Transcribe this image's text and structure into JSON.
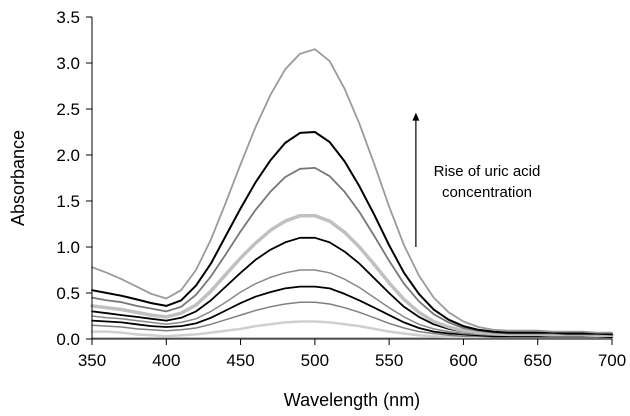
{
  "chart_data": {
    "type": "line",
    "title": "",
    "xlabel": "Wavelength (nm)",
    "ylabel": "Absorbance",
    "xlim": [
      350,
      700
    ],
    "ylim": [
      0,
      3.5
    ],
    "xticks": [
      350,
      400,
      450,
      500,
      550,
      600,
      650,
      700
    ],
    "yticks": [
      0.0,
      0.5,
      1.0,
      1.5,
      2.0,
      2.5,
      3.0,
      3.5
    ],
    "xtick_labels": [
      "350",
      "400",
      "450",
      "500",
      "550",
      "600",
      "650",
      "700"
    ],
    "ytick_labels": [
      "0.0",
      "0.5",
      "1.0",
      "1.5",
      "2.0",
      "2.5",
      "3.0",
      "3.5"
    ],
    "grid": false,
    "legend": "none",
    "annotation": {
      "lines": [
        "Rise of uric acid",
        "concentration"
      ],
      "arrow_x": 568,
      "arrow_y_from": 1.0,
      "arrow_y_to": 2.45
    },
    "x": [
      350,
      360,
      370,
      380,
      390,
      400,
      410,
      420,
      430,
      440,
      450,
      460,
      470,
      480,
      490,
      500,
      510,
      520,
      530,
      540,
      550,
      560,
      570,
      580,
      590,
      600,
      610,
      620,
      630,
      640,
      650,
      660,
      670,
      680,
      690,
      700
    ],
    "series": [
      {
        "color": "#9a9a9a",
        "width": 1.5,
        "values": [
          0.01,
          0.01,
          0.01,
          0.01,
          0.01,
          0.01,
          0.01,
          0.01,
          0.01,
          0.01,
          0.01,
          0.01,
          0.01,
          0.01,
          0.01,
          0.01,
          0.01,
          0.01,
          0.01,
          0.01,
          0.01,
          0.01,
          0.01,
          0.01,
          0.01,
          0.01,
          0.01,
          0.01,
          0.01,
          0.01,
          0.01,
          0.01,
          0.01,
          0.01,
          0.01,
          0.01
        ]
      },
      {
        "color": "#cfcfcf",
        "width": 2.5,
        "values": [
          0.08,
          0.08,
          0.07,
          0.05,
          0.04,
          0.03,
          0.04,
          0.05,
          0.07,
          0.09,
          0.11,
          0.14,
          0.16,
          0.18,
          0.19,
          0.19,
          0.18,
          0.16,
          0.14,
          0.11,
          0.08,
          0.06,
          0.04,
          0.03,
          0.02,
          0.02,
          0.01,
          0.01,
          0.01,
          0.01,
          0.01,
          0.01,
          0.01,
          0.01,
          0.01,
          0.01
        ]
      },
      {
        "color": "#808080",
        "width": 1.5,
        "values": [
          0.15,
          0.14,
          0.13,
          0.11,
          0.1,
          0.09,
          0.1,
          0.12,
          0.16,
          0.21,
          0.26,
          0.31,
          0.35,
          0.38,
          0.4,
          0.4,
          0.38,
          0.34,
          0.29,
          0.23,
          0.17,
          0.12,
          0.08,
          0.06,
          0.04,
          0.03,
          0.03,
          0.02,
          0.02,
          0.02,
          0.02,
          0.02,
          0.02,
          0.02,
          0.02,
          0.02
        ]
      },
      {
        "color": "#000000",
        "width": 1.8,
        "values": [
          0.2,
          0.19,
          0.18,
          0.16,
          0.14,
          0.13,
          0.14,
          0.17,
          0.23,
          0.31,
          0.39,
          0.46,
          0.51,
          0.55,
          0.57,
          0.57,
          0.55,
          0.49,
          0.42,
          0.34,
          0.26,
          0.18,
          0.12,
          0.08,
          0.06,
          0.05,
          0.04,
          0.03,
          0.03,
          0.03,
          0.03,
          0.03,
          0.03,
          0.03,
          0.03,
          0.02
        ]
      },
      {
        "color": "#888888",
        "width": 1.5,
        "values": [
          0.25,
          0.23,
          0.22,
          0.2,
          0.18,
          0.16,
          0.18,
          0.22,
          0.3,
          0.4,
          0.51,
          0.6,
          0.67,
          0.72,
          0.75,
          0.75,
          0.72,
          0.65,
          0.56,
          0.45,
          0.34,
          0.24,
          0.16,
          0.11,
          0.08,
          0.06,
          0.05,
          0.04,
          0.04,
          0.04,
          0.04,
          0.03,
          0.03,
          0.03,
          0.03,
          0.03
        ]
      },
      {
        "color": "#000000",
        "width": 1.8,
        "values": [
          0.3,
          0.28,
          0.26,
          0.24,
          0.22,
          0.2,
          0.23,
          0.3,
          0.42,
          0.57,
          0.72,
          0.86,
          0.97,
          1.05,
          1.1,
          1.1,
          1.05,
          0.95,
          0.82,
          0.66,
          0.5,
          0.35,
          0.24,
          0.16,
          0.11,
          0.08,
          0.06,
          0.05,
          0.05,
          0.05,
          0.05,
          0.04,
          0.04,
          0.04,
          0.04,
          0.04
        ]
      },
      {
        "color": "#c0c0c0",
        "width": 3.5,
        "values": [
          0.36,
          0.34,
          0.32,
          0.29,
          0.26,
          0.24,
          0.28,
          0.37,
          0.52,
          0.7,
          0.88,
          1.04,
          1.18,
          1.28,
          1.34,
          1.34,
          1.28,
          1.16,
          1.0,
          0.81,
          0.61,
          0.43,
          0.29,
          0.19,
          0.13,
          0.09,
          0.07,
          0.06,
          0.05,
          0.05,
          0.05,
          0.05,
          0.05,
          0.05,
          0.04,
          0.04
        ]
      },
      {
        "color": "#777777",
        "width": 1.8,
        "values": [
          0.45,
          0.42,
          0.4,
          0.36,
          0.33,
          0.3,
          0.35,
          0.48,
          0.68,
          0.92,
          1.17,
          1.4,
          1.6,
          1.76,
          1.85,
          1.86,
          1.77,
          1.6,
          1.38,
          1.12,
          0.85,
          0.6,
          0.41,
          0.27,
          0.18,
          0.12,
          0.09,
          0.07,
          0.06,
          0.06,
          0.06,
          0.06,
          0.05,
          0.05,
          0.05,
          0.05
        ]
      },
      {
        "color": "#000000",
        "width": 2.0,
        "values": [
          0.53,
          0.5,
          0.47,
          0.43,
          0.39,
          0.36,
          0.42,
          0.58,
          0.82,
          1.12,
          1.42,
          1.7,
          1.94,
          2.13,
          2.24,
          2.25,
          2.14,
          1.93,
          1.66,
          1.35,
          1.02,
          0.72,
          0.49,
          0.32,
          0.21,
          0.14,
          0.1,
          0.08,
          0.07,
          0.07,
          0.07,
          0.07,
          0.06,
          0.06,
          0.06,
          0.05
        ]
      },
      {
        "color": "#9a9a9a",
        "width": 1.8,
        "values": [
          0.78,
          0.72,
          0.65,
          0.57,
          0.49,
          0.44,
          0.53,
          0.75,
          1.08,
          1.48,
          1.9,
          2.3,
          2.65,
          2.93,
          3.1,
          3.15,
          3.02,
          2.72,
          2.34,
          1.9,
          1.44,
          1.02,
          0.69,
          0.45,
          0.29,
          0.19,
          0.13,
          0.1,
          0.09,
          0.09,
          0.09,
          0.08,
          0.08,
          0.08,
          0.07,
          0.07
        ]
      }
    ]
  }
}
